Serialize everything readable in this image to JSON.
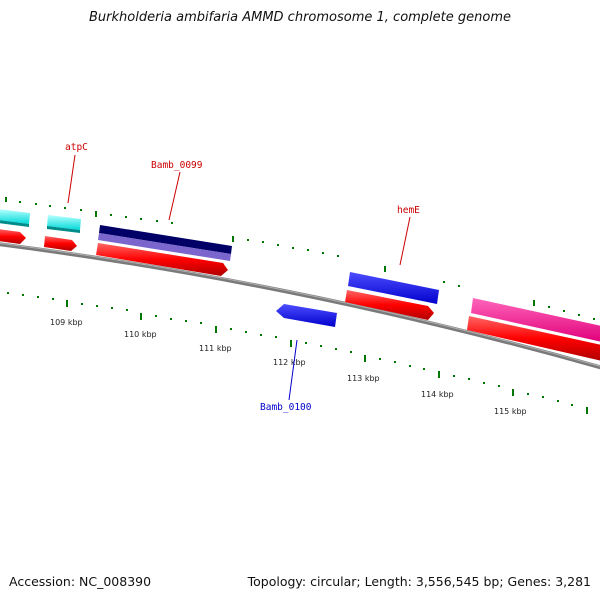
{
  "title": "Burkholderia ambifaria AMMD chromosome 1, complete genome",
  "footer": {
    "accession": "Accession: NC_008390",
    "summary": "Topology: circular; Length: 3,556,545 bp; Genes: 3,281"
  },
  "axis_labels": [
    "109 kbp",
    "110 kbp",
    "111 kbp",
    "112 kbp",
    "113 kbp",
    "114 kbp",
    "115 kbp"
  ],
  "gene_labels": [
    {
      "name": "atpC",
      "color": "#cc0000"
    },
    {
      "name": "Bamb_0099",
      "color": "#cc0000"
    },
    {
      "name": "hemE",
      "color": "#cc0000"
    },
    {
      "name": "Bamb_0100",
      "color": "#0000cc"
    }
  ],
  "colors": {
    "backbone": "#808080",
    "cds": "#ff0000",
    "gene_blue": "#0000ff",
    "gene_cyan": "#00ffff",
    "gene_navy": "#000066",
    "gene_purple": "#7a66cc",
    "gene_magenta": "#ff1493",
    "ticks": "#007700"
  }
}
